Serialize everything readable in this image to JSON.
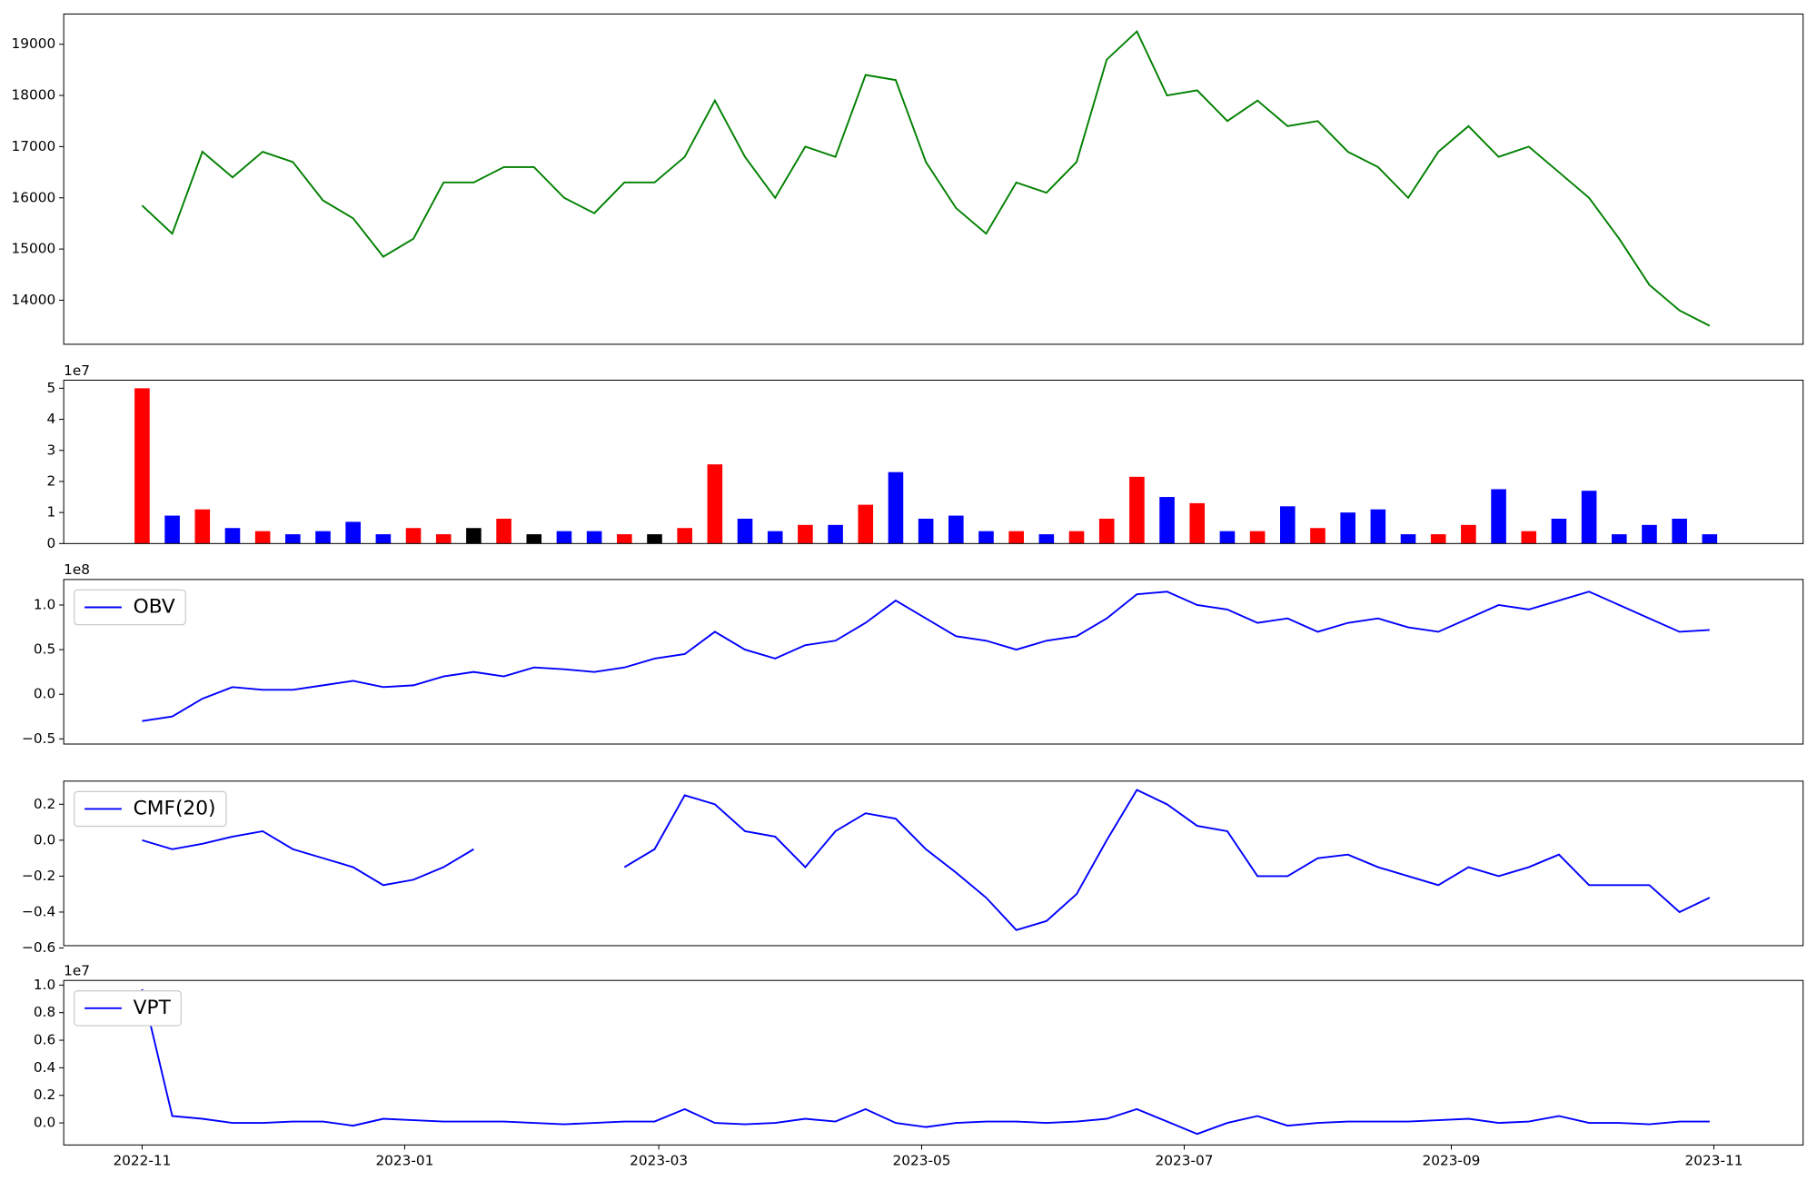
{
  "chart_data": [
    {
      "type": "line",
      "color": "#008000",
      "values": [
        15850,
        15300,
        16900,
        16400,
        16900,
        16700,
        15950,
        15600,
        14850,
        15200,
        16300,
        16300,
        16600,
        16600,
        16000,
        15700,
        16300,
        16300,
        16800,
        17900,
        16800,
        16000,
        17000,
        16800,
        18400,
        18300,
        16700,
        15800,
        15300,
        16300,
        16100,
        16700,
        18700,
        19250,
        18000,
        18100,
        17500,
        17900,
        17400,
        17500,
        16900,
        16600,
        16000,
        16900,
        17400,
        16800,
        17000,
        16500,
        16000,
        15200,
        14300,
        13800,
        13500
      ],
      "ylim": [
        13140,
        19590
      ],
      "yticks": [
        14000,
        15000,
        16000,
        17000,
        18000,
        19000
      ]
    },
    {
      "type": "bar",
      "offset_label": "1e7",
      "values": [
        5.0,
        0.9,
        1.1,
        0.5,
        0.4,
        0.3,
        0.4,
        0.7,
        0.3,
        0.5,
        0.3,
        0.5,
        0.8,
        0.3,
        0.4,
        0.4,
        0.3,
        0.3,
        0.5,
        2.55,
        0.8,
        0.4,
        0.6,
        0.6,
        1.25,
        2.3,
        0.8,
        0.9,
        0.4,
        0.4,
        0.3,
        0.4,
        0.8,
        2.15,
        1.5,
        1.3,
        0.4,
        0.4,
        1.2,
        0.5,
        1.0,
        1.1,
        0.3,
        0.3,
        0.6,
        1.75,
        0.4,
        0.8,
        1.7,
        0.3,
        0.6,
        0.8,
        0.3
      ],
      "colors": [
        "#ff0000",
        "#0000ff",
        "#ff0000",
        "#0000ff",
        "#ff0000",
        "#0000ff",
        "#0000ff",
        "#0000ff",
        "#0000ff",
        "#ff0000",
        "#ff0000",
        "#000000",
        "#ff0000",
        "#000000",
        "#0000ff",
        "#0000ff",
        "#ff0000",
        "#000000",
        "#ff0000",
        "#ff0000",
        "#0000ff",
        "#0000ff",
        "#ff0000",
        "#0000ff",
        "#ff0000",
        "#0000ff",
        "#0000ff",
        "#0000ff",
        "#0000ff",
        "#ff0000",
        "#0000ff",
        "#ff0000",
        "#ff0000",
        "#ff0000",
        "#0000ff",
        "#ff0000",
        "#0000ff",
        "#ff0000",
        "#0000ff",
        "#ff0000",
        "#0000ff",
        "#0000ff",
        "#0000ff",
        "#ff0000",
        "#ff0000",
        "#0000ff",
        "#ff0000",
        "#0000ff",
        "#0000ff",
        "#0000ff",
        "#0000ff",
        "#0000ff",
        "#0000ff"
      ],
      "ylim": [
        0,
        5.26
      ],
      "yticks": [
        0,
        1,
        2,
        3,
        4,
        5
      ]
    },
    {
      "type": "line",
      "offset_label": "1e8",
      "legend": "upper left",
      "series": [
        {
          "name": "OBV",
          "color": "#0000ff",
          "values": [
            -0.3,
            -0.25,
            -0.05,
            0.08,
            0.05,
            0.05,
            0.1,
            0.15,
            0.08,
            0.1,
            0.2,
            0.25,
            0.2,
            0.3,
            0.28,
            0.25,
            0.3,
            0.4,
            0.45,
            0.7,
            0.5,
            0.4,
            0.55,
            0.6,
            0.8,
            1.05,
            0.85,
            0.65,
            0.6,
            0.5,
            0.6,
            0.65,
            0.85,
            1.12,
            1.15,
            1.0,
            0.95,
            0.8,
            0.85,
            0.7,
            0.8,
            0.85,
            0.75,
            0.7,
            0.85,
            1.0,
            0.95,
            1.05,
            1.15,
            1.0,
            0.85,
            0.7,
            0.72
          ]
        }
      ],
      "ylim": [
        -0.558,
        1.286
      ],
      "yticks": [
        {
          "value": -0.5,
          "label": "−0.5"
        },
        {
          "value": 0,
          "label": "0.0"
        },
        0.5,
        {
          "value": 1,
          "label": "1.0"
        }
      ]
    },
    {
      "type": "line",
      "legend": "upper left",
      "series": [
        {
          "name": "CMF(20)",
          "color": "#0000ff",
          "values": [
            0.0,
            -0.05,
            -0.02,
            0.02,
            0.05,
            -0.05,
            -0.1,
            -0.15,
            -0.25,
            -0.22,
            -0.15,
            -0.05,
            null,
            null,
            null,
            null,
            -0.15,
            -0.05,
            0.25,
            0.2,
            0.05,
            0.02,
            -0.15,
            0.05,
            0.15,
            0.12,
            -0.05,
            -0.18,
            -0.32,
            -0.5,
            -0.45,
            -0.3,
            0.0,
            0.28,
            0.2,
            0.08,
            0.05,
            -0.2,
            -0.2,
            -0.1,
            -0.08,
            -0.15,
            -0.2,
            -0.25,
            -0.15,
            -0.2,
            -0.15,
            -0.08,
            -0.25,
            -0.25,
            -0.25,
            -0.4,
            -0.32
          ]
        }
      ],
      "ylim": [
        -0.587,
        0.329
      ],
      "yticks": [
        {
          "value": -0.6,
          "label": "−0.6"
        },
        {
          "value": -0.4,
          "label": "−0.4"
        },
        {
          "value": -0.2,
          "label": "−0.2"
        },
        {
          "value": 0,
          "label": "0.0"
        },
        0.2
      ]
    },
    {
      "type": "line",
      "offset_label": "1e7",
      "legend": "upper left",
      "series": [
        {
          "name": "VPT",
          "color": "#0000ff",
          "values": [
            0.97,
            0.05,
            0.03,
            0.0,
            0.0,
            0.01,
            0.01,
            -0.02,
            0.03,
            0.02,
            0.01,
            0.01,
            0.01,
            0.0,
            -0.01,
            0.0,
            0.01,
            0.01,
            0.1,
            0.0,
            -0.01,
            0.0,
            0.03,
            0.01,
            0.1,
            0.0,
            -0.03,
            0.0,
            0.01,
            0.01,
            0.0,
            0.01,
            0.03,
            0.1,
            0.01,
            -0.08,
            0.0,
            0.05,
            -0.02,
            0.0,
            0.01,
            0.01,
            0.01,
            0.02,
            0.03,
            0.0,
            0.01,
            0.05,
            0.0,
            0.0,
            -0.01,
            0.01,
            0.01
          ]
        }
      ],
      "ylim": [
        -0.16,
        1.034
      ],
      "yticks": [
        {
          "value": 0,
          "label": "0.0"
        },
        0.2,
        0.4,
        0.6,
        0.8,
        {
          "value": 1,
          "label": "1.0"
        }
      ],
      "xlim": [
        -2.6,
        55.1
      ],
      "xticks": [
        {
          "value": 0,
          "label": "2022-11"
        },
        {
          "value": 8.71,
          "label": "2023-01"
        },
        {
          "value": 17.14,
          "label": "2023-03"
        },
        {
          "value": 25.86,
          "label": "2023-05"
        },
        {
          "value": 34.57,
          "label": "2023-07"
        },
        {
          "value": 43.43,
          "label": "2023-09"
        },
        {
          "value": 52.14,
          "label": "2023-11"
        }
      ]
    }
  ]
}
